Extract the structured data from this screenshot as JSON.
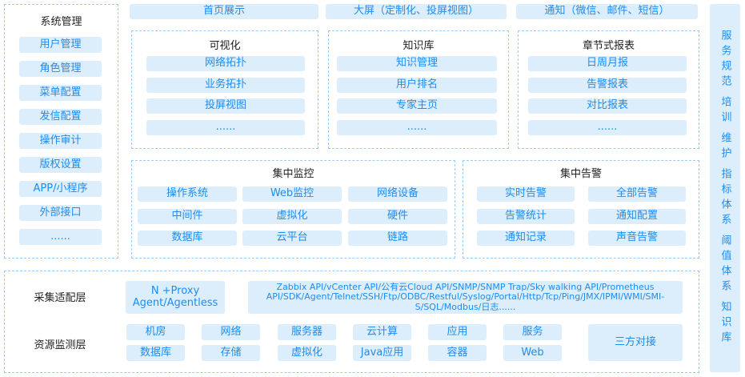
{
  "system": {
    "title": "系统管理",
    "items": [
      "用户管理",
      "角色管理",
      "菜单配置",
      "发信配置",
      "操作审计",
      "版权设置",
      "APP/小程序",
      "外部接口",
      "......"
    ]
  },
  "top_bars": [
    "首页展示",
    "大屏（定制化、投屏视图）",
    "通知（微信、邮件、短信）"
  ],
  "visual": {
    "title": "可视化",
    "items": [
      "网络拓扑",
      "业务拓扑",
      "投屏视图",
      "......"
    ]
  },
  "knowledge": {
    "title": "知识库",
    "items": [
      "知识管理",
      "用户排名",
      "专家主页",
      "......"
    ]
  },
  "report": {
    "title": "章节式报表",
    "items": [
      "日周月报",
      "告警报表",
      "对比报表",
      "......"
    ]
  },
  "monitor": {
    "title": "集中监控",
    "items": [
      "操作系统",
      "Web监控",
      "网络设备",
      "中间件",
      "虚拟化",
      "硬件",
      "数据库",
      "云平台",
      "链路"
    ]
  },
  "alarm": {
    "title": "集中告警",
    "items": [
      "实时告警",
      "全部告警",
      "告警统计",
      "通知配置",
      "通知记录",
      "声音告警"
    ]
  },
  "collect": {
    "label": "采集适配层",
    "proxy": "N +Proxy Agent/Agentless",
    "apis": "Zabbix API/vCenter API/公有云Cloud API/SNMP/SNMP Trap/Sky walking API/Prometheus API/SDK/Agent/Telnet/SSH/Ftp/ODBC/Restful/Syslog/Portal/Http/Tcp/Ping/JMX/IPMI/WMI/SMI-S/SQL/Modbus/日志......"
  },
  "resource": {
    "label": "资源监测层",
    "items": [
      "机房",
      "网络",
      "服务器",
      "云计算",
      "应用",
      "服务",
      "数据库",
      "存储",
      "虚拟化",
      "Java应用",
      "容器",
      "Web"
    ],
    "third_party": "三方对接"
  },
  "side": [
    "服务规范",
    "培训",
    "维护",
    "指标体系",
    "阈值体系",
    "知识库"
  ],
  "colors": {
    "box_fill": "#dcedfc",
    "text_blue": "#1e8cf0",
    "dashed_border": "#9ccbf5"
  }
}
